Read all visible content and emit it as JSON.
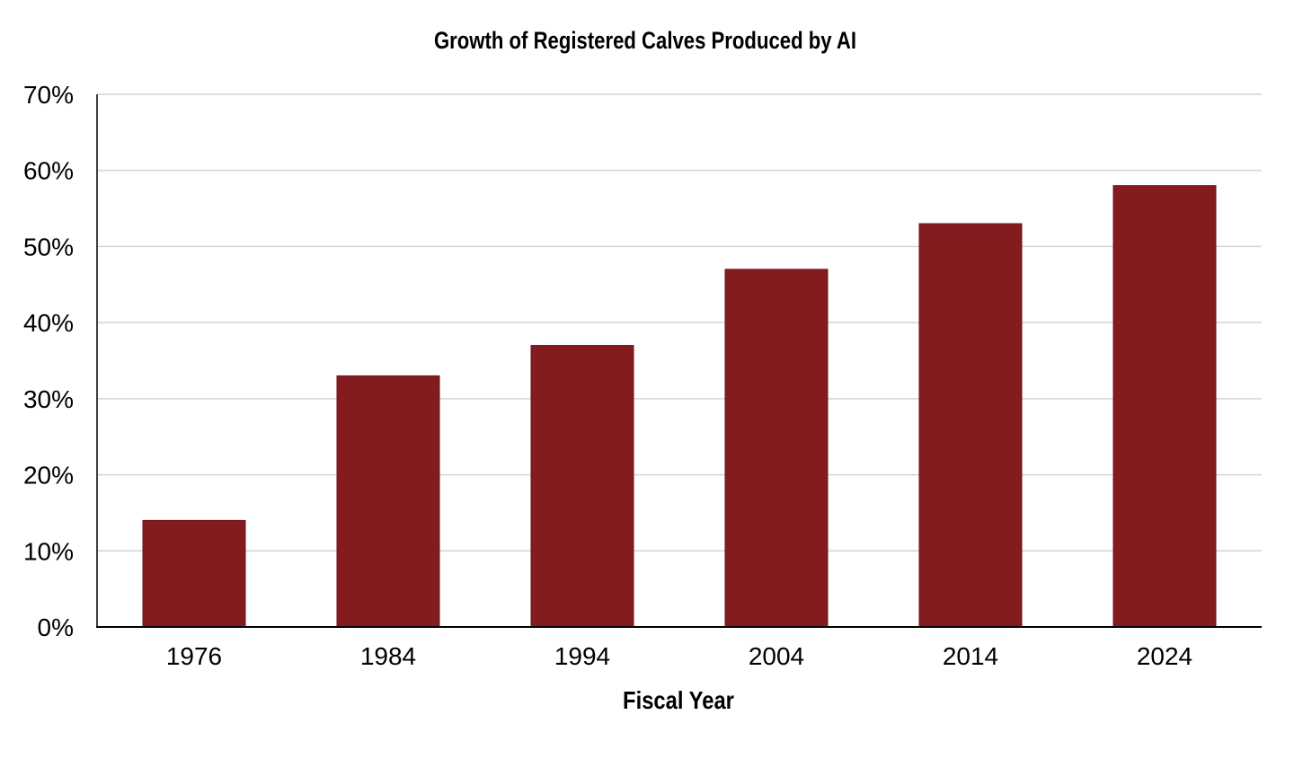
{
  "chart_data": {
    "type": "bar",
    "title": "Growth of Registered Calves Produced by AI",
    "xlabel": "Fiscal Year",
    "ylabel": "",
    "categories": [
      "1976",
      "1984",
      "1994",
      "2004",
      "2014",
      "2024"
    ],
    "values": [
      14,
      33,
      37,
      47,
      53,
      58
    ],
    "ylim": [
      0,
      70
    ],
    "yticks": [
      0,
      10,
      20,
      30,
      40,
      50,
      60,
      70
    ],
    "ytick_format": "%",
    "grid": true,
    "bar_color": "#841B1E",
    "legend": "none"
  }
}
